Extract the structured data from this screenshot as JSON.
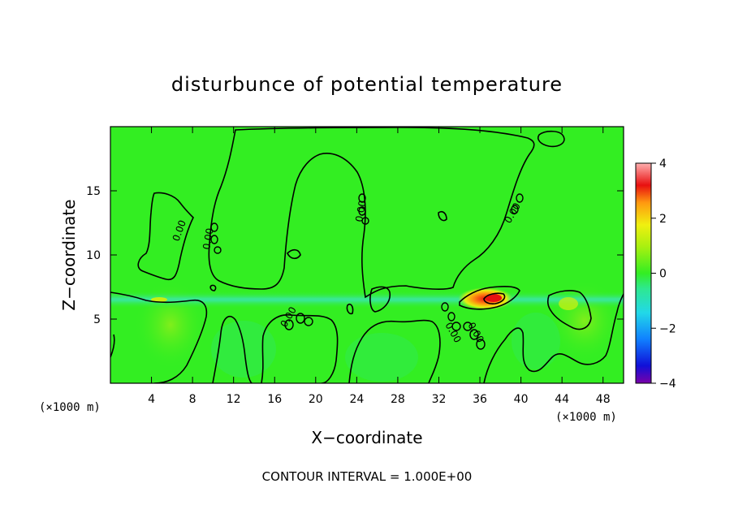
{
  "chart_data": {
    "type": "heatmap",
    "title": "disturbunce of potential temperature",
    "xlabel": "X−coordinate",
    "ylabel": "Z−coordinate",
    "x_unit": "(×1000 m)",
    "y_unit": "(×1000 m)",
    "xlim": [
      0,
      50
    ],
    "ylim": [
      0,
      20
    ],
    "xticks": [
      "4",
      "8",
      "12",
      "16",
      "20",
      "24",
      "28",
      "32",
      "36",
      "40",
      "44",
      "48"
    ],
    "yticks": [
      "5",
      "10",
      "15"
    ],
    "colorbar": {
      "range": [
        -4,
        4
      ],
      "ticks": [
        "4",
        "2",
        "0",
        "−2",
        "−4"
      ]
    },
    "contour_interval": "CONTOUR INTERVAL = 1.000E+00",
    "contour_labels": [
      "0.00",
      "0.00",
      "0.00",
      "0.00",
      "0.00",
      "0.00",
      "0.00"
    ],
    "field_description": {
      "background": 0,
      "cool_band": {
        "z": 6.5,
        "value": -0.5
      },
      "warm_anomaly": {
        "x": 37.5,
        "z": 6.7,
        "value": 3.5
      }
    },
    "colors": {
      "background_green": "#33ee22",
      "cool_band": "#3ae0a0",
      "warm_peak": "#e81010"
    }
  }
}
